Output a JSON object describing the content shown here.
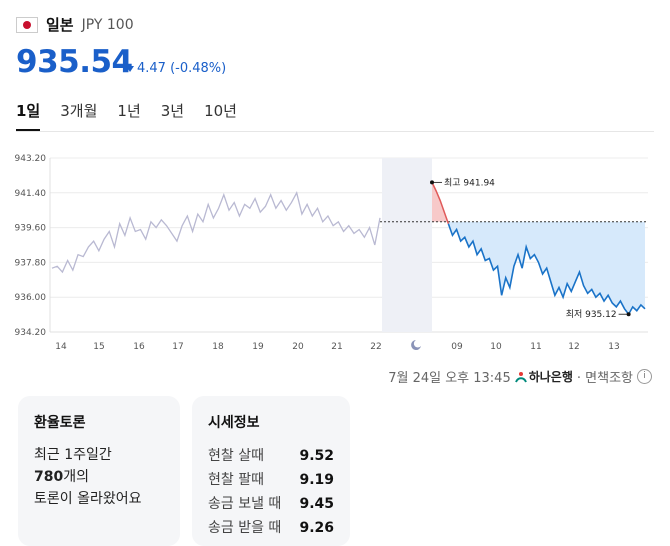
{
  "header": {
    "currency_name": "일본",
    "currency_code": "JPY 100"
  },
  "price": {
    "value": "935.54",
    "change": "4.47 (-0.48%)",
    "direction": "down",
    "color": "#1a5fc9"
  },
  "tabs": [
    {
      "label": "1일",
      "active": true
    },
    {
      "label": "3개월"
    },
    {
      "label": "1년"
    },
    {
      "label": "3년"
    },
    {
      "label": "10년"
    }
  ],
  "chart_data": {
    "type": "line",
    "ylim": [
      934.2,
      943.2
    ],
    "y_ticks": [
      "943.20",
      "941.40",
      "939.60",
      "937.80",
      "936.00",
      "934.20"
    ],
    "x_ticks": [
      "14",
      "15",
      "16",
      "17",
      "18",
      "19",
      "20",
      "21",
      "22",
      "09",
      "10",
      "11",
      "12",
      "13"
    ],
    "reference_value": 939.9,
    "series": [
      {
        "style": "history",
        "color": "#b9b9d2",
        "values": [
          937.5,
          937.6,
          937.3,
          937.9,
          937.4,
          938.2,
          938.1,
          938.6,
          938.9,
          938.4,
          939.0,
          939.4,
          938.6,
          939.8,
          939.2,
          940.1,
          939.4,
          939.5,
          939.0,
          939.9,
          939.6,
          940.0,
          939.7,
          939.3,
          938.9,
          939.7,
          940.2,
          939.4,
          940.3,
          939.9,
          940.8,
          940.1,
          940.6,
          941.3,
          940.5,
          940.9,
          940.2,
          940.8,
          940.6,
          941.1,
          940.4,
          940.7,
          941.3,
          940.6,
          941.0,
          940.5,
          940.9,
          941.4,
          940.3,
          940.8,
          940.2,
          940.6,
          939.9,
          940.2,
          939.7,
          939.9,
          939.4,
          939.7,
          939.3,
          939.5,
          939.1,
          939.6,
          938.7,
          940.1
        ]
      },
      {
        "style": "today",
        "color": "#1a73c8",
        "values": [
          941.94,
          941.5,
          941.0,
          940.4,
          939.8,
          939.2,
          939.5,
          938.9,
          939.1,
          938.6,
          938.9,
          938.2,
          938.5,
          937.9,
          938.0,
          937.4,
          937.6,
          936.1,
          937.0,
          936.5,
          937.6,
          938.2,
          937.5,
          938.6,
          938.0,
          938.2,
          937.8,
          937.2,
          937.5,
          936.8,
          936.1,
          936.5,
          936.0,
          936.7,
          936.3,
          936.8,
          937.3,
          936.6,
          936.2,
          936.4,
          936.0,
          936.2,
          935.8,
          936.1,
          935.7,
          935.5,
          935.8,
          935.4,
          935.12,
          935.5,
          935.3,
          935.6,
          935.4
        ]
      }
    ],
    "annotations": [
      {
        "label": "최고 941.94"
      },
      {
        "label": "최저 935.12"
      }
    ]
  },
  "meta": {
    "timestamp": "7월 24일 오후 13:45",
    "bank": "하나은행",
    "note": "· 면책조항"
  },
  "cards": {
    "discussion": {
      "title": "환율토론",
      "line1": "최근 1주일간",
      "count": "780",
      "line2_suffix": "개의",
      "line3": "토론이 올라왔어요"
    },
    "rates": {
      "title": "시세정보",
      "rows": [
        {
          "label": "현찰 살때",
          "value": "9.52"
        },
        {
          "label": "현찰 팔때",
          "value": "9.19"
        },
        {
          "label": "송금 보낼 때",
          "value": "9.45"
        },
        {
          "label": "송금 받을 때",
          "value": "9.26"
        }
      ]
    }
  }
}
